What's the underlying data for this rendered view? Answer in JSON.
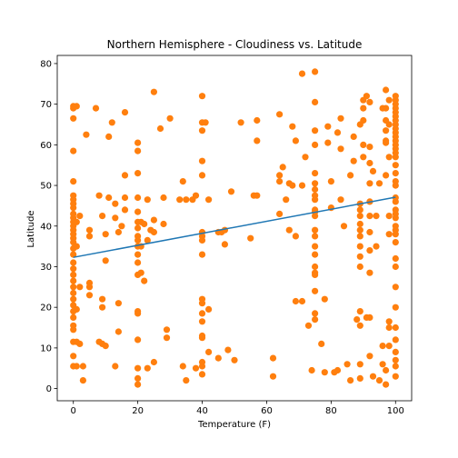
{
  "chart_data": {
    "type": "scatter",
    "title": "Northern Hemisphere - Cloudiness vs. Latitude",
    "xlabel": "Temperature (F)",
    "ylabel": "Latitude",
    "xlim": [
      -5,
      105
    ],
    "ylim": [
      -3,
      82
    ],
    "xticks": [
      0,
      20,
      40,
      60,
      80,
      100
    ],
    "yticks": [
      0,
      10,
      20,
      30,
      40,
      50,
      60,
      70,
      80
    ],
    "grid": false,
    "colors": {
      "points": "#ff7f0e",
      "regression": "#1f77b4",
      "axes": "#000000"
    },
    "regression_line": {
      "x": [
        0,
        100
      ],
      "y": [
        32.3,
        47.1
      ]
    },
    "series": [
      {
        "values": [
          [
            0,
            69.5
          ],
          [
            0,
            69
          ],
          [
            0,
            66.5
          ],
          [
            0,
            58.5
          ],
          [
            0,
            51
          ],
          [
            0,
            47.5
          ],
          [
            0,
            46.5
          ],
          [
            0,
            45.5
          ],
          [
            0,
            44.5
          ],
          [
            0,
            43
          ],
          [
            0,
            42
          ],
          [
            0,
            41
          ],
          [
            0,
            40
          ],
          [
            0,
            39
          ],
          [
            0,
            38
          ],
          [
            0,
            37
          ],
          [
            0,
            36
          ],
          [
            0,
            34.5
          ],
          [
            0,
            33
          ],
          [
            0,
            31
          ],
          [
            0,
            29.5
          ],
          [
            0,
            28
          ],
          [
            0,
            26.5
          ],
          [
            0,
            25
          ],
          [
            0,
            23.5
          ],
          [
            0,
            22
          ],
          [
            0,
            20.5
          ],
          [
            0,
            19
          ],
          [
            0,
            17.5
          ],
          [
            0,
            15.5
          ],
          [
            0,
            14.5
          ],
          [
            0,
            11.5
          ],
          [
            0,
            8
          ],
          [
            0,
            5.5
          ],
          [
            1,
            69.5
          ],
          [
            1,
            41
          ],
          [
            1,
            35
          ],
          [
            1,
            19.5
          ],
          [
            1,
            11.5
          ],
          [
            1,
            5.5
          ],
          [
            2,
            25
          ],
          [
            2,
            11
          ],
          [
            2,
            42.5
          ],
          [
            3,
            5.5
          ],
          [
            3,
            2
          ],
          [
            4,
            62.5
          ],
          [
            5,
            39
          ],
          [
            5,
            37.5
          ],
          [
            5,
            26
          ],
          [
            5,
            25
          ],
          [
            5,
            23
          ],
          [
            7,
            69
          ],
          [
            8,
            47.5
          ],
          [
            8,
            11.5
          ],
          [
            9,
            42.5
          ],
          [
            9,
            22
          ],
          [
            9,
            20
          ],
          [
            9,
            11
          ],
          [
            10,
            10.5
          ],
          [
            10,
            38
          ],
          [
            10,
            31.5
          ],
          [
            11,
            62
          ],
          [
            11,
            47
          ],
          [
            12,
            65.5
          ],
          [
            13,
            45.5
          ],
          [
            13,
            42
          ],
          [
            13,
            5.5
          ],
          [
            14,
            38.5
          ],
          [
            14,
            21
          ],
          [
            14,
            14
          ],
          [
            15,
            40
          ],
          [
            16,
            47
          ],
          [
            16,
            44
          ],
          [
            16,
            68
          ],
          [
            16,
            52.5
          ],
          [
            20,
            60.5
          ],
          [
            20,
            58.5
          ],
          [
            20,
            53
          ],
          [
            20,
            47
          ],
          [
            20,
            43.5
          ],
          [
            20,
            41
          ],
          [
            20,
            39.5
          ],
          [
            20,
            37.5
          ],
          [
            20,
            36.5
          ],
          [
            20,
            35
          ],
          [
            20,
            33
          ],
          [
            20,
            31
          ],
          [
            20,
            28
          ],
          [
            20,
            19
          ],
          [
            20,
            18.5
          ],
          [
            20,
            12
          ],
          [
            20,
            5
          ],
          [
            20,
            2.5
          ],
          [
            20,
            1
          ],
          [
            21,
            28.5
          ],
          [
            21,
            41
          ],
          [
            21,
            35
          ],
          [
            22,
            40.5
          ],
          [
            22,
            26.5
          ],
          [
            23,
            46.5
          ],
          [
            23,
            36.5
          ],
          [
            23,
            5
          ],
          [
            24,
            39
          ],
          [
            25,
            73
          ],
          [
            25,
            41.5
          ],
          [
            25,
            38.5
          ],
          [
            25,
            6.5
          ],
          [
            27,
            64
          ],
          [
            28,
            40.5
          ],
          [
            28,
            47
          ],
          [
            29,
            14.5
          ],
          [
            29,
            12.5
          ],
          [
            30,
            66.5
          ],
          [
            33,
            46.5
          ],
          [
            34,
            51
          ],
          [
            34,
            5.5
          ],
          [
            35,
            46.5
          ],
          [
            35,
            2
          ],
          [
            37,
            46.5
          ],
          [
            38,
            47.5
          ],
          [
            38,
            5
          ],
          [
            40,
            72
          ],
          [
            40,
            65.5
          ],
          [
            40,
            63.5
          ],
          [
            40,
            56
          ],
          [
            40,
            52.5
          ],
          [
            40,
            38.5
          ],
          [
            40,
            37.5
          ],
          [
            40,
            36.5
          ],
          [
            40,
            33
          ],
          [
            40,
            22
          ],
          [
            40,
            21
          ],
          [
            40,
            18.5
          ],
          [
            40,
            16.5
          ],
          [
            40,
            13
          ],
          [
            40,
            12.5
          ],
          [
            40,
            6.5
          ],
          [
            40,
            5.5
          ],
          [
            40,
            3.5
          ],
          [
            41,
            65.5
          ],
          [
            42,
            46.5
          ],
          [
            42,
            19.5
          ],
          [
            42,
            9
          ],
          [
            45,
            38.5
          ],
          [
            45,
            7.5
          ],
          [
            46,
            38.5
          ],
          [
            47,
            39
          ],
          [
            47,
            35.5
          ],
          [
            48,
            9.5
          ],
          [
            49,
            48.5
          ],
          [
            50,
            7
          ],
          [
            52,
            65.5
          ],
          [
            55,
            37
          ],
          [
            56,
            47.5
          ],
          [
            57,
            47.5
          ],
          [
            57,
            66
          ],
          [
            57,
            61
          ],
          [
            62,
            7.5
          ],
          [
            62,
            3
          ],
          [
            64,
            67.5
          ],
          [
            64,
            52.5
          ],
          [
            64,
            51
          ],
          [
            64,
            43
          ],
          [
            65,
            54.5
          ],
          [
            66,
            46.5
          ],
          [
            67,
            50.5
          ],
          [
            67,
            39
          ],
          [
            68,
            50
          ],
          [
            68,
            64.5
          ],
          [
            69,
            61
          ],
          [
            69,
            37.5
          ],
          [
            69,
            21.5
          ],
          [
            71,
            21.5
          ],
          [
            71,
            50
          ],
          [
            71,
            77.5
          ],
          [
            72,
            57
          ],
          [
            73,
            15.5
          ],
          [
            74,
            4.5
          ],
          [
            75,
            78
          ],
          [
            75,
            70.5
          ],
          [
            75,
            63.5
          ],
          [
            75,
            60
          ],
          [
            75,
            53
          ],
          [
            75,
            50.5
          ],
          [
            75,
            49
          ],
          [
            75,
            47.5
          ],
          [
            75,
            46.5
          ],
          [
            75,
            44
          ],
          [
            75,
            43.5
          ],
          [
            75,
            42.5
          ],
          [
            75,
            39
          ],
          [
            75,
            37.5
          ],
          [
            75,
            35
          ],
          [
            75,
            33
          ],
          [
            75,
            30
          ],
          [
            75,
            28.5
          ],
          [
            75,
            28
          ],
          [
            75,
            24
          ],
          [
            75,
            18.5
          ],
          [
            75,
            17
          ],
          [
            77,
            11
          ],
          [
            78,
            22
          ],
          [
            78,
            4
          ],
          [
            79,
            64.5
          ],
          [
            79,
            60.5
          ],
          [
            80,
            51
          ],
          [
            80,
            44.5
          ],
          [
            81,
            4
          ],
          [
            82,
            63
          ],
          [
            82,
            4.5
          ],
          [
            83,
            66.5
          ],
          [
            83,
            59
          ],
          [
            83,
            46.5
          ],
          [
            84,
            40
          ],
          [
            85,
            6
          ],
          [
            86,
            52.5
          ],
          [
            86,
            2
          ],
          [
            87,
            62
          ],
          [
            87,
            56
          ],
          [
            88,
            17
          ],
          [
            89,
            65
          ],
          [
            89,
            45.5
          ],
          [
            89,
            44
          ],
          [
            89,
            42.5
          ],
          [
            89,
            40.5
          ],
          [
            89,
            39
          ],
          [
            89,
            37.5
          ],
          [
            89,
            35
          ],
          [
            89,
            32.5
          ],
          [
            89,
            30
          ],
          [
            89,
            19
          ],
          [
            89,
            15.5
          ],
          [
            89,
            6
          ],
          [
            89,
            2.5
          ],
          [
            90,
            71
          ],
          [
            90,
            69
          ],
          [
            90,
            66
          ],
          [
            90,
            60
          ],
          [
            90,
            57
          ],
          [
            91,
            72
          ],
          [
            91,
            17.5
          ],
          [
            92,
            70.5
          ],
          [
            92,
            59.5
          ],
          [
            92,
            55.5
          ],
          [
            92,
            50.5
          ],
          [
            92,
            46
          ],
          [
            92,
            42.5
          ],
          [
            92,
            38.5
          ],
          [
            92,
            34
          ],
          [
            92,
            28.5
          ],
          [
            92,
            17.5
          ],
          [
            92,
            8
          ],
          [
            93,
            53.5
          ],
          [
            93,
            3
          ],
          [
            94,
            42.5
          ],
          [
            94,
            35
          ],
          [
            95,
            2
          ],
          [
            95,
            50.5
          ],
          [
            96,
            69
          ],
          [
            96,
            6
          ],
          [
            96,
            10.5
          ],
          [
            97,
            73.5
          ],
          [
            97,
            69
          ],
          [
            97,
            66
          ],
          [
            97,
            63.5
          ],
          [
            97,
            61
          ],
          [
            97,
            60.5
          ],
          [
            97,
            52.5
          ],
          [
            97,
            4.5
          ],
          [
            97,
            1
          ],
          [
            98,
            71
          ],
          [
            98,
            65
          ],
          [
            98,
            57
          ],
          [
            98,
            42.5
          ],
          [
            98,
            38
          ],
          [
            98,
            16.5
          ],
          [
            98,
            15
          ],
          [
            98,
            10.5
          ],
          [
            100,
            72
          ],
          [
            100,
            71
          ],
          [
            100,
            70
          ],
          [
            100,
            69
          ],
          [
            100,
            68
          ],
          [
            100,
            67
          ],
          [
            100,
            66
          ],
          [
            100,
            65
          ],
          [
            100,
            64
          ],
          [
            100,
            63
          ],
          [
            100,
            62
          ],
          [
            100,
            61
          ],
          [
            100,
            60
          ],
          [
            100,
            59
          ],
          [
            100,
            58
          ],
          [
            100,
            57
          ],
          [
            100,
            55
          ],
          [
            100,
            53
          ],
          [
            100,
            51
          ],
          [
            100,
            50
          ],
          [
            100,
            47
          ],
          [
            100,
            46
          ],
          [
            100,
            44
          ],
          [
            100,
            43
          ],
          [
            100,
            42
          ],
          [
            100,
            40
          ],
          [
            100,
            39
          ],
          [
            100,
            38
          ],
          [
            100,
            36
          ],
          [
            100,
            32
          ],
          [
            100,
            30
          ],
          [
            100,
            25
          ],
          [
            100,
            20
          ],
          [
            100,
            15
          ],
          [
            100,
            12
          ],
          [
            100,
            9
          ],
          [
            100,
            7
          ],
          [
            100,
            5.5
          ],
          [
            100,
            3
          ]
        ]
      }
    ]
  }
}
